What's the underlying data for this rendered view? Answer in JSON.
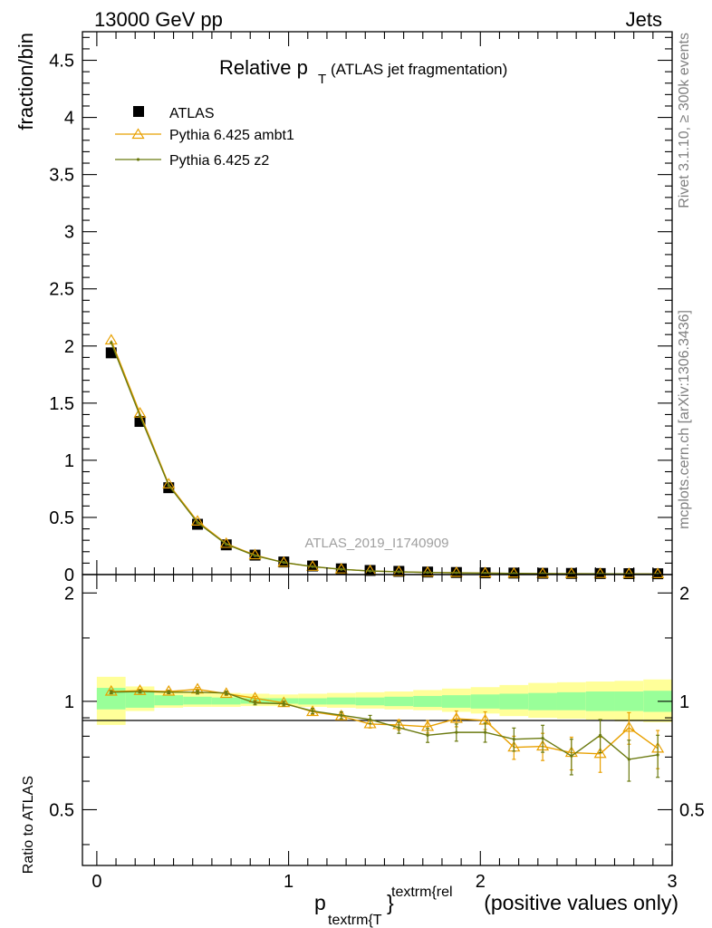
{
  "header": {
    "left": "13000 GeV pp",
    "right": "Jets"
  },
  "side": {
    "rivet": "Rivet 3.1.10, ≥ 300k events",
    "mcplots": "mcplots.cern.ch [arXiv:1306.3436]"
  },
  "chart_data": {
    "type": "line",
    "title_main": "Relative p",
    "title_sub": "T",
    "title_paren": "(ATLAS jet fragmentation)",
    "watermark": "ATLAS_2019_I1740909",
    "ylabel": "fraction/bin",
    "ratio_ylabel": "Ratio to ATLAS",
    "xlabel_main": "p",
    "xlabel_sub": "textrm{T",
    "xlabel_sup": "textrm{rel",
    "xlabel_brace": "}",
    "xlabel_rest": " (positive values only)",
    "xlim": [
      -0.075,
      3.0
    ],
    "ylim": [
      0,
      4.75
    ],
    "ratio_ylim": [
      0.35,
      2.25
    ],
    "x_ticks": [
      "0",
      "1",
      "2",
      "3"
    ],
    "y_ticks": [
      "0",
      "0.5",
      "1",
      "1.5",
      "2",
      "2.5",
      "3",
      "3.5",
      "4",
      "4.5"
    ],
    "ratio_ticks": [
      "0.5",
      "1",
      "2"
    ],
    "x": [
      0.075,
      0.225,
      0.375,
      0.525,
      0.675,
      0.825,
      0.975,
      1.125,
      1.275,
      1.425,
      1.575,
      1.725,
      1.875,
      2.025,
      2.175,
      2.325,
      2.475,
      2.625,
      2.775,
      2.925
    ],
    "series": [
      {
        "name": "ATLAS",
        "color": "#000000",
        "marker": "square",
        "values": [
          1.94,
          1.34,
          0.76,
          0.44,
          0.26,
          0.17,
          0.11,
          0.075,
          0.05,
          0.036,
          0.028,
          0.022,
          0.018,
          0.015,
          0.013,
          0.011,
          0.01,
          0.009,
          0.008,
          0.007
        ],
        "band_inner": [
          [
            0.95,
            1.09
          ],
          [
            0.96,
            1.06
          ],
          [
            0.975,
            1.04
          ],
          [
            0.98,
            1.03
          ],
          [
            0.98,
            1.025
          ],
          [
            0.985,
            1.02
          ],
          [
            0.985,
            1.02
          ],
          [
            0.98,
            1.02
          ],
          [
            0.98,
            1.025
          ],
          [
            0.975,
            1.025
          ],
          [
            0.97,
            1.03
          ],
          [
            0.965,
            1.035
          ],
          [
            0.96,
            1.04
          ],
          [
            0.955,
            1.045
          ],
          [
            0.95,
            1.05
          ],
          [
            0.945,
            1.055
          ],
          [
            0.945,
            1.06
          ],
          [
            0.94,
            1.065
          ],
          [
            0.94,
            1.065
          ],
          [
            0.935,
            1.07
          ]
        ],
        "band_outer": [
          [
            0.86,
            1.17
          ],
          [
            0.94,
            1.1
          ],
          [
            0.96,
            1.07
          ],
          [
            0.965,
            1.06
          ],
          [
            0.965,
            1.055
          ],
          [
            0.97,
            1.05
          ],
          [
            0.97,
            1.045
          ],
          [
            0.965,
            1.05
          ],
          [
            0.96,
            1.055
          ],
          [
            0.955,
            1.06
          ],
          [
            0.95,
            1.065
          ],
          [
            0.945,
            1.075
          ],
          [
            0.935,
            1.085
          ],
          [
            0.925,
            1.095
          ],
          [
            0.91,
            1.11
          ],
          [
            0.9,
            1.125
          ],
          [
            0.895,
            1.13
          ],
          [
            0.89,
            1.135
          ],
          [
            0.88,
            1.14
          ],
          [
            0.875,
            1.15
          ]
        ]
      },
      {
        "name": "Pythia 6.425 ambt1",
        "color": "#e8a000",
        "marker": "triangle",
        "values": [
          2.05,
          1.41,
          0.79,
          0.465,
          0.27,
          0.17,
          0.105,
          0.069,
          0.046,
          0.031,
          0.024,
          0.0185,
          0.016,
          0.013,
          0.0097,
          0.0082,
          0.0072,
          0.0065,
          0.0068,
          0.0052
        ],
        "ratio": [
          1.065,
          1.07,
          1.065,
          1.08,
          1.05,
          1.02,
          0.99,
          0.935,
          0.91,
          0.865,
          0.86,
          0.85,
          0.895,
          0.885,
          0.745,
          0.75,
          0.72,
          0.715,
          0.845,
          0.74
        ],
        "ratio_err": [
          0.01,
          0.01,
          0.01,
          0.012,
          0.012,
          0.012,
          0.012,
          0.016,
          0.02,
          0.022,
          0.028,
          0.034,
          0.045,
          0.05,
          0.055,
          0.065,
          0.075,
          0.08,
          0.085,
          0.09
        ]
      },
      {
        "name": "Pythia 6.425 z2",
        "color": "#6b7a10",
        "marker": "dot",
        "values": [
          2.03,
          1.39,
          0.78,
          0.455,
          0.265,
          0.165,
          0.106,
          0.07,
          0.046,
          0.031,
          0.024,
          0.018,
          0.015,
          0.0122,
          0.01,
          0.0087,
          0.007,
          0.0073,
          0.0055,
          0.005
        ],
        "ratio": [
          1.06,
          1.065,
          1.06,
          1.06,
          1.055,
          0.99,
          0.985,
          0.94,
          0.915,
          0.89,
          0.845,
          0.805,
          0.82,
          0.82,
          0.785,
          0.79,
          0.705,
          0.805,
          0.69,
          0.71
        ],
        "ratio_err": [
          0.01,
          0.01,
          0.01,
          0.012,
          0.012,
          0.012,
          0.014,
          0.016,
          0.02,
          0.024,
          0.03,
          0.036,
          0.045,
          0.05,
          0.058,
          0.068,
          0.08,
          0.085,
          0.09,
          0.095
        ]
      }
    ]
  }
}
